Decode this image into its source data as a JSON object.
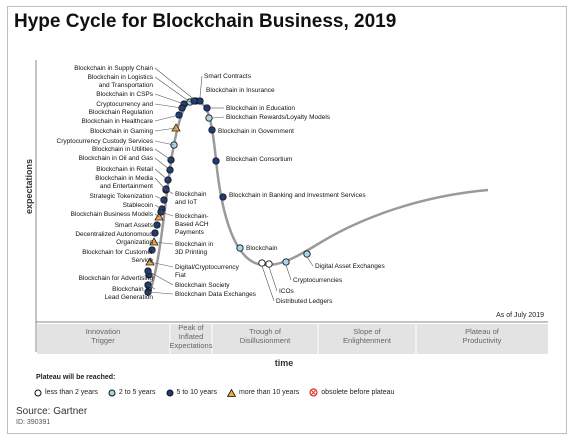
{
  "title": "Hype Cycle for Blockchain Business, 2019",
  "source": "Source: Gartner",
  "doc_id": "ID: 390391",
  "as_of": "As of July 2019",
  "legend": {
    "title": "Plateau will be reached:",
    "items": [
      {
        "label": "less than 2 years",
        "marker": "white-circle",
        "color": "#ffffff"
      },
      {
        "label": "2 to 5 years",
        "marker": "lightblue-circle",
        "color": "#a8d4ec"
      },
      {
        "label": "5 to 10 years",
        "marker": "darkblue-circle",
        "color": "#1f3a78"
      },
      {
        "label": "more than 10 years",
        "marker": "orange-triangle",
        "color": "#f4a640"
      },
      {
        "label": "obsolete before plateau",
        "marker": "red-x-circle",
        "color": "#d9302b"
      }
    ]
  },
  "chart_data": {
    "type": "hype-cycle",
    "ylabel": "expectations",
    "xlabel": "time",
    "phases": [
      "Innovation\nTrigger",
      "Peak of\nInflated\nExpectations",
      "Trough of\nDisillusionment",
      "Slope of\nEnlightenment",
      "Plateau of\nProductivity"
    ],
    "left_labels": [
      "Blockchain in Supply Chain",
      "Blockchain in Logistics\nand Transportation",
      "Blockchain in CSPs",
      "Cryptocurrency and\nBlockchain Regulation",
      "Blockchain in Healthcare",
      "Blockchain in Gaming",
      "Cryptocurrency Custody Services",
      "Blockchain in Utilities",
      "Blockchain in Oil and Gas",
      "Blockchain in Retail",
      "Blockchain in Media\nand Entertainment",
      "Strategic Tokenization",
      "Stablecoin",
      "Blockchain Business Models",
      "Smart Assets",
      "Decentralized Autonomous\nOrganization",
      "Blockchain for Customer\nService",
      "Blockchain for Advertising",
      "Blockchain for\nLead Generation"
    ],
    "mid_labels": [
      "Blockchain\nand IoT",
      "Blockchain-\nBased ACH\nPayments",
      "Blockchain in\n3D Printing",
      "Digital/Cryptocurrency\nFiat",
      "Blockchain Society",
      "Blockchain Data Exchanges"
    ],
    "right_labels": [
      "Smart Contracts",
      "Blockchain in Insurance",
      "Blockchain in Education",
      "Blockchain Rewards/Loyalty Models",
      "Blockchain in Government",
      "Blockchain Consortium",
      "Blockchain in Banking and Investment Services",
      "Blockchain",
      "Digital Asset Exchanges",
      "Cryptocurrencies",
      "ICOs",
      "Distributed Ledgers"
    ]
  }
}
